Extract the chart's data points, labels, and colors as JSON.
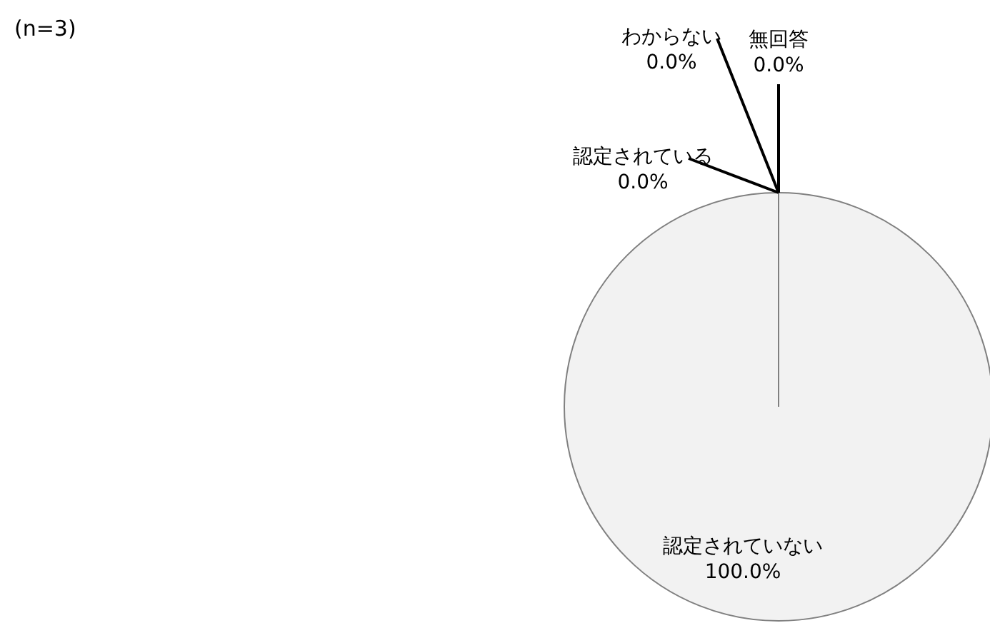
{
  "chart_data": {
    "type": "pie",
    "categories": [
      "認定されている",
      "認定されていない",
      "わからない",
      "無回答"
    ],
    "values": [
      0.0,
      100.0,
      0.0,
      0.0
    ],
    "colors": [
      "#f2f2f2",
      "#f2f2f2",
      "#f2f2f2",
      "#f2f2f2"
    ],
    "value_labels": [
      "0.0%",
      "100.0%",
      "0.0%",
      "0.0%"
    ],
    "annotations": [
      "(n=3)"
    ]
  }
}
